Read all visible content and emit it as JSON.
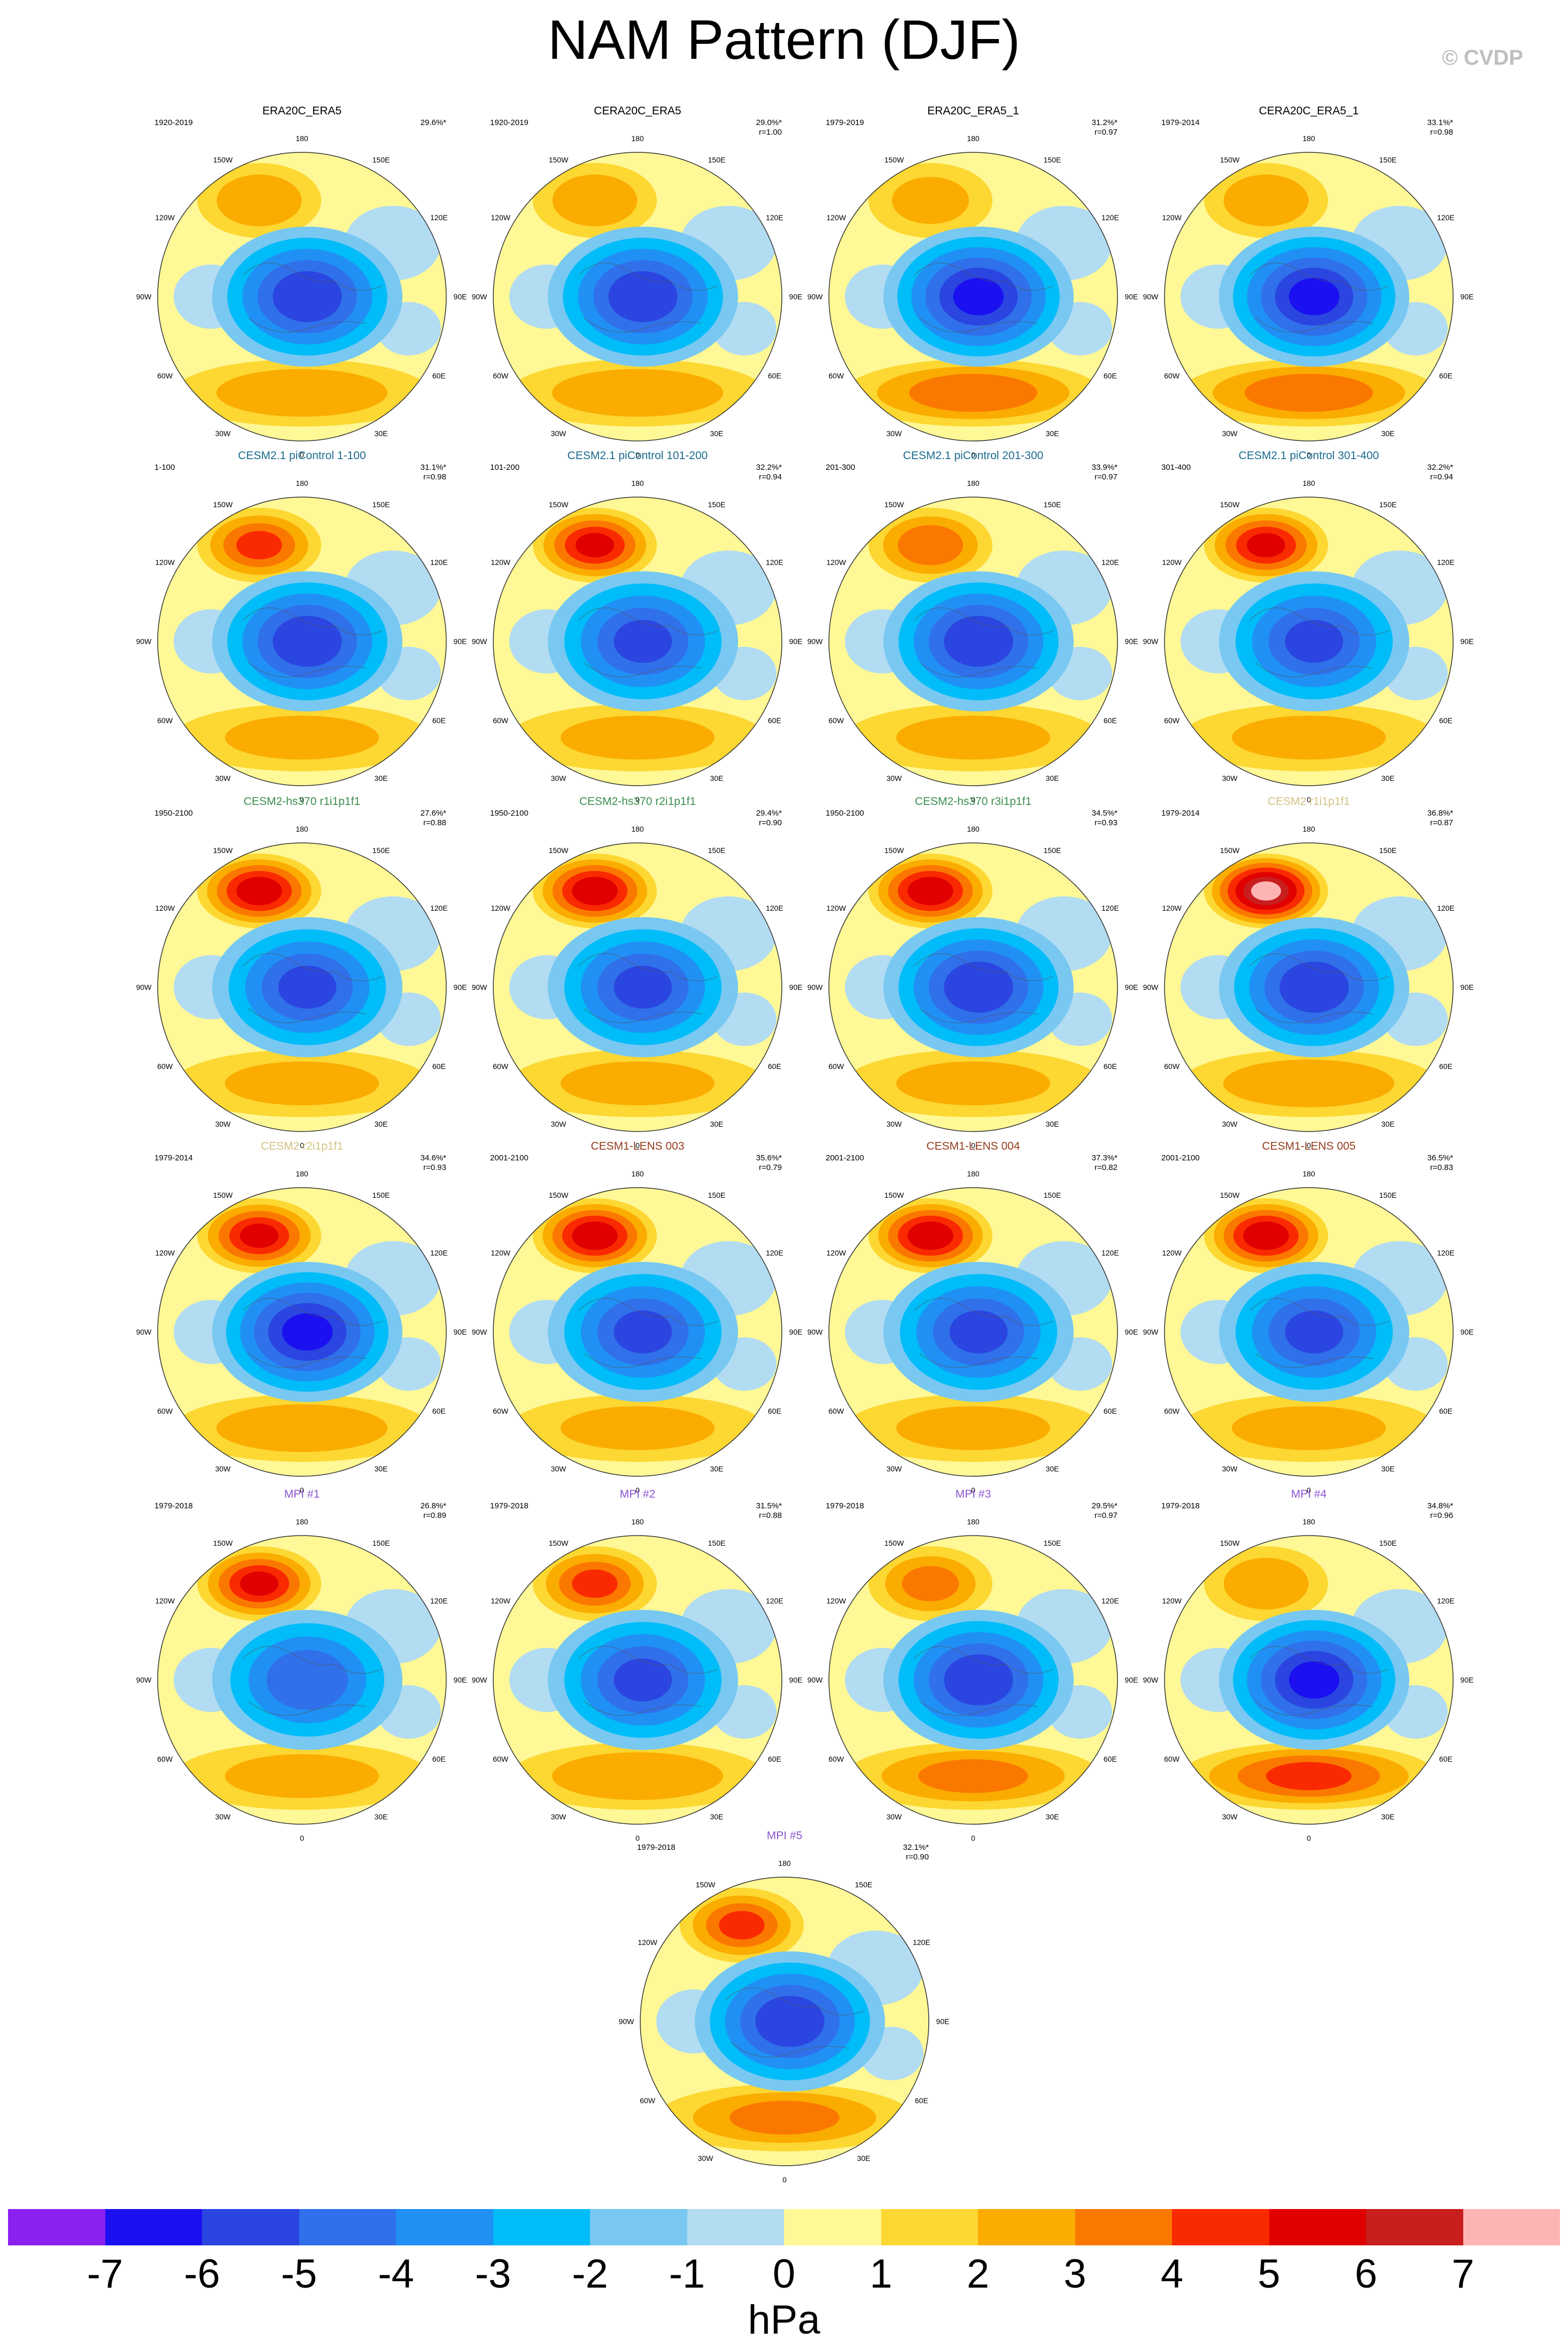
{
  "title": "NAM Pattern (DJF)",
  "copyright": "© CVDP",
  "lon_labels": [
    "180",
    "150E",
    "120E",
    "90E",
    "60E",
    "30E",
    "0",
    "30W",
    "60W",
    "90W",
    "120W",
    "150W"
  ],
  "palette": {
    "title_black": "#000000",
    "title_teal": "#1a6b8c",
    "title_green": "#3c8c50",
    "title_tan": "#d2c282",
    "title_brown": "#963c1e",
    "title_purple": "#8c55d2"
  },
  "panels": [
    {
      "title": "ERA20C_ERA5",
      "color": "#000000",
      "period": "1920-2019",
      "pct": "29.6%*",
      "r": "",
      "style": {
        "neg": -5.5,
        "pac": 2.5,
        "atl": 2.5
      }
    },
    {
      "title": "CERA20C_ERA5",
      "color": "#000000",
      "period": "1920-2019",
      "pct": "29.0%*",
      "r": "r=1.00",
      "style": {
        "neg": -5.5,
        "pac": 2.5,
        "atl": 2.5
      }
    },
    {
      "title": "ERA20C_ERA5_1",
      "color": "#000000",
      "period": "1979-2019",
      "pct": "31.2%*",
      "r": "r=0.97",
      "style": {
        "neg": -6,
        "pac": 2,
        "atl": 3.5
      }
    },
    {
      "title": "CERA20C_ERA5_1",
      "color": "#000000",
      "period": "1979-2014",
      "pct": "33.1%*",
      "r": "r=0.98",
      "style": {
        "neg": -6,
        "pac": 2.5,
        "atl": 3.5
      }
    },
    {
      "title": "CESM2.1 piControl 1-100",
      "color": "#1a6b8c",
      "period": "1-100",
      "pct": "31.1%*",
      "r": "r=0.98",
      "style": {
        "neg": -5.5,
        "pac": 4,
        "atl": 2
      }
    },
    {
      "title": "CESM2.1 piControl 101-200",
      "color": "#1a6b8c",
      "period": "101-200",
      "pct": "32.2%*",
      "r": "r=0.94",
      "style": {
        "neg": -5,
        "pac": 5,
        "atl": 2
      }
    },
    {
      "title": "CESM2.1 piControl 201-300",
      "color": "#1a6b8c",
      "period": "201-300",
      "pct": "33.9%*",
      "r": "r=0.97",
      "style": {
        "neg": -5.5,
        "pac": 3.5,
        "atl": 2
      }
    },
    {
      "title": "CESM2.1 piControl 301-400",
      "color": "#1a6b8c",
      "period": "301-400",
      "pct": "32.2%*",
      "r": "r=0.94",
      "style": {
        "neg": -5,
        "pac": 5,
        "atl": 2
      }
    },
    {
      "title": "CESM2-hs370 r1i1p1f1",
      "color": "#3c8c50",
      "period": "1950-2100",
      "pct": "27.6%*",
      "r": "r=0.88",
      "style": {
        "neg": -5,
        "pac": 5.5,
        "atl": 2
      }
    },
    {
      "title": "CESM2-hs370 r2i1p1f1",
      "color": "#3c8c50",
      "period": "1950-2100",
      "pct": "29.4%*",
      "r": "r=0.90",
      "style": {
        "neg": -5,
        "pac": 5.5,
        "atl": 2
      }
    },
    {
      "title": "CESM2-hs370 r3i1p1f1",
      "color": "#3c8c50",
      "period": "1950-2100",
      "pct": "34.5%*",
      "r": "r=0.93",
      "style": {
        "neg": -5.5,
        "pac": 5.5,
        "atl": 2
      }
    },
    {
      "title": "CESM2 r1i1p1f1",
      "color": "#d2c282",
      "period": "1979-2014",
      "pct": "36.8%*",
      "r": "r=0.87",
      "style": {
        "neg": -5.5,
        "pac": 7,
        "atl": 2.5
      }
    },
    {
      "title": "CESM2 r2i1p1f1",
      "color": "#d2c282",
      "period": "1979-2014",
      "pct": "34.6%*",
      "r": "r=0.93",
      "style": {
        "neg": -6,
        "pac": 5,
        "atl": 2.5
      }
    },
    {
      "title": "CESM1-LENS 003",
      "color": "#963c1e",
      "period": "2001-2100",
      "pct": "35.6%*",
      "r": "r=0.79",
      "style": {
        "neg": -5,
        "pac": 5.5,
        "atl": 2
      }
    },
    {
      "title": "CESM1-LENS 004",
      "color": "#963c1e",
      "period": "2001-2100",
      "pct": "37.3%*",
      "r": "r=0.82",
      "style": {
        "neg": -5,
        "pac": 5.5,
        "atl": 2
      }
    },
    {
      "title": "CESM1-LENS 005",
      "color": "#963c1e",
      "period": "2001-2100",
      "pct": "36.5%*",
      "r": "r=0.83",
      "style": {
        "neg": -5,
        "pac": 5.5,
        "atl": 2
      }
    },
    {
      "title": "MPI #1",
      "color": "#8c55d2",
      "period": "1979-2018",
      "pct": "26.8%*",
      "r": "r=0.89",
      "style": {
        "neg": -4.5,
        "pac": 5,
        "atl": 2
      }
    },
    {
      "title": "MPI #2",
      "color": "#8c55d2",
      "period": "1979-2018",
      "pct": "31.5%*",
      "r": "r=0.88",
      "style": {
        "neg": -5,
        "pac": 4,
        "atl": 2.5
      }
    },
    {
      "title": "MPI #3",
      "color": "#8c55d2",
      "period": "1979-2018",
      "pct": "29.5%*",
      "r": "r=0.97",
      "style": {
        "neg": -5.5,
        "pac": 3,
        "atl": 3
      }
    },
    {
      "title": "MPI #4",
      "color": "#8c55d2",
      "period": "1979-2018",
      "pct": "34.8%*",
      "r": "r=0.96",
      "style": {
        "neg": -6,
        "pac": 2.5,
        "atl": 4
      }
    },
    {
      "title": "MPI #5",
      "color": "#8c55d2",
      "period": "1979-2018",
      "pct": "32.1%*",
      "r": "r=0.90",
      "style": {
        "neg": -5.5,
        "pac": 4,
        "atl": 3
      }
    }
  ],
  "colorbar": {
    "colors": [
      "#8c20f0",
      "#1a10f0",
      "#2a45e0",
      "#3070ea",
      "#2090f5",
      "#00bcf8",
      "#78c8f2",
      "#b2dcf2",
      "#fff896",
      "#fdd732",
      "#fbac00",
      "#fb7800",
      "#fa2a00",
      "#e00000",
      "#c81e1e",
      "#ffb4b4"
    ],
    "ticks": [
      "-7",
      "-6",
      "-5",
      "-4",
      "-3",
      "-2",
      "-1",
      "0",
      "1",
      "2",
      "3",
      "4",
      "5",
      "6",
      "7"
    ],
    "units": "hPa"
  }
}
